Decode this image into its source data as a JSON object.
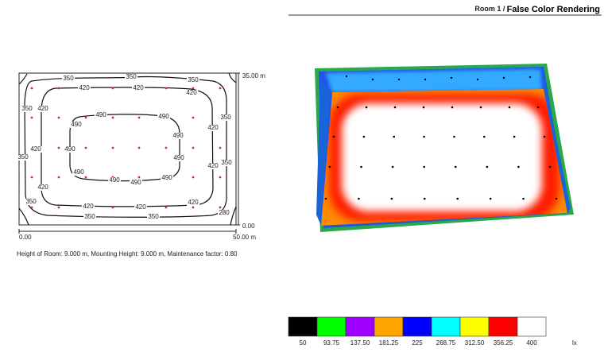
{
  "header": {
    "room": "Room 1 /",
    "title": "False Color Rendering"
  },
  "isoline": {
    "contour_labels": [
      "350",
      "350",
      "350",
      "420",
      "420",
      "420",
      "350",
      "420",
      "490",
      "490",
      "350",
      "490",
      "420",
      "490",
      "420",
      "490",
      "350",
      "490",
      "420",
      "350",
      "490",
      "490",
      "490",
      "490",
      "420",
      "350",
      "420",
      "420",
      "420",
      "280",
      "350",
      "350"
    ],
    "axis_labels": {
      "y_top": "35.00 m",
      "y_bottom": "0.00",
      "x_left": "0.00",
      "x_right": "50.00 m"
    },
    "caption": "Height of Room: 9.000 m, Mounting Height: 9.000 m, Maintenance factor: 0.80"
  },
  "color_scale": {
    "colors": [
      "#000000",
      "#00ff00",
      "#a000ff",
      "#ffa500",
      "#0000ff",
      "#00ffff",
      "#ffff00",
      "#ff0000",
      "#ffffff"
    ],
    "labels": [
      "50",
      "93.75",
      "137.50",
      "181.25",
      "225",
      "268.75",
      "312.50",
      "356.25",
      "400"
    ],
    "unit": "lx"
  }
}
